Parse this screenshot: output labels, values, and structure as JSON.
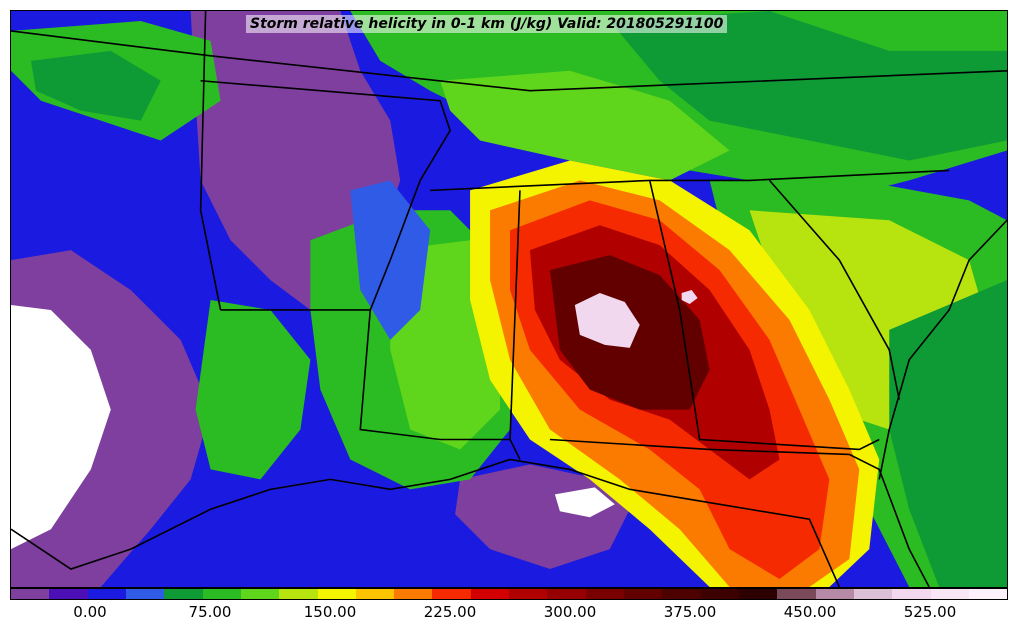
{
  "title": "Storm relative helicity in 0-1 km (J/kg) Valid: 201805291100",
  "colorbar": {
    "colors": [
      "#7e3f9e",
      "#4b0fb5",
      "#1a1ae0",
      "#2f5be6",
      "#0e9a35",
      "#2bbb22",
      "#5fd61b",
      "#b7e40f",
      "#f4f400",
      "#fbc300",
      "#fb7b00",
      "#f52a00",
      "#d20000",
      "#b00000",
      "#960000",
      "#7a0000",
      "#620000",
      "#4c0000",
      "#3d0000",
      "#2c0000",
      "#7a4a5a",
      "#b68aa6",
      "#dcc0d8",
      "#f2d8ee",
      "#f8e6f4",
      "#fdf2fb"
    ],
    "tick_labels": [
      "0.00",
      "75.00",
      "150.00",
      "225.00",
      "300.00",
      "375.00",
      "450.00",
      "525.00"
    ]
  },
  "map": {
    "colors": {
      "purple": "#7e3f9e",
      "blue": "#1a1ae0",
      "blue2": "#2f5be6",
      "green_dark": "#0e9a35",
      "green": "#2bbb22",
      "green_light": "#5fd61b",
      "yellowgreen": "#b7e40f",
      "yellow": "#f4f400",
      "orange": "#fb7b00",
      "red": "#f52a00",
      "darkred": "#b00000",
      "maroon": "#620000",
      "pink": "#f2d8ee",
      "white": "#ffffff",
      "border": "#000000"
    }
  }
}
